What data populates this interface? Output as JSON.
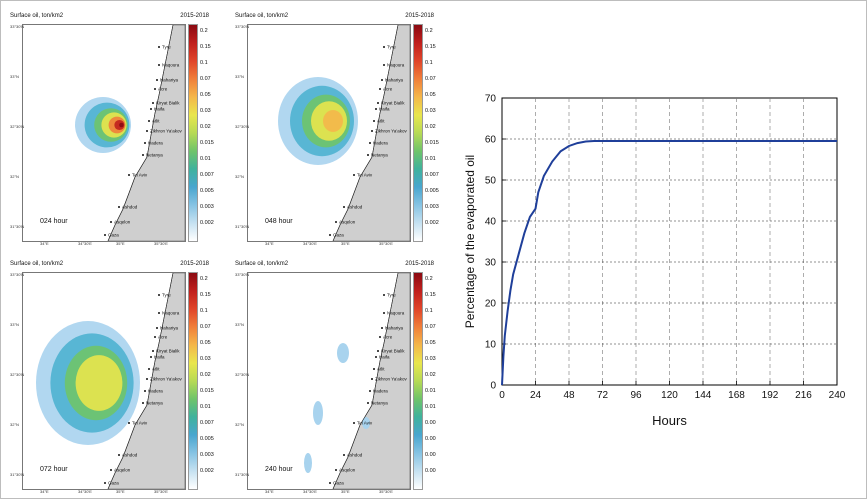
{
  "panels": [
    {
      "id": "p1",
      "title": "Surface oil, ton/km2",
      "years": "2015-2018",
      "hour_label": "024 hour"
    },
    {
      "id": "p2",
      "title": "Surface oil, ton/km2",
      "years": "2015-2018",
      "hour_label": "048 hour"
    },
    {
      "id": "p3",
      "title": "Surface oil, ton/km2",
      "years": "2015-2018",
      "hour_label": "072 hour"
    },
    {
      "id": "p4",
      "title": "Surface oil, ton/km2",
      "years": "2015-2018",
      "hour_label": "240 hour"
    }
  ],
  "colorbar": {
    "ticks": [
      "0.2",
      "0.15",
      "0.1",
      "0.07",
      "0.05",
      "0.03",
      "0.02",
      "0.015",
      "0.01",
      "0.007",
      "0.005",
      "0.003",
      "0.002"
    ],
    "ticks_truncated": [
      "0.2",
      "0.15",
      "0.1",
      "0.07",
      "0.05",
      "0.03",
      "0.02",
      "0.01",
      "0.01",
      "0.00",
      "0.00",
      "0.00",
      "0.00"
    ],
    "colors": [
      "#8b0a12",
      "#c0201d",
      "#e0452a",
      "#f07f3a",
      "#f4b74a",
      "#e9e64d",
      "#b7da55",
      "#6fc46a",
      "#3fb29d",
      "#49a6cf",
      "#86c3e3",
      "#c5e1f1",
      "#ffffff"
    ]
  },
  "map_labels": {
    "lat": [
      "33°30'N",
      "33°N",
      "32°30'N",
      "32°N",
      "31°30'N"
    ],
    "lon": [
      "34°E",
      "34°30'E",
      "35°E",
      "35°30'E"
    ],
    "cities": [
      "Tyre",
      "Naqoura",
      "Nahariya",
      "Acre",
      "Kiryat Bialik",
      "Haifa",
      "Atlit",
      "Zikhron Ya'akov",
      "Hadera",
      "Netanya",
      "Tel Aviv",
      "Ashdod",
      "Asqelon",
      "Gaza"
    ]
  },
  "chart_data": {
    "type": "line",
    "xlabel": "Hours",
    "ylabel": "Percentage of the evaporated oil",
    "xlim": [
      0,
      240
    ],
    "ylim": [
      0,
      70
    ],
    "xticks": [
      0,
      24,
      48,
      72,
      96,
      120,
      144,
      168,
      192,
      216,
      240
    ],
    "yticks": [
      0,
      10,
      20,
      30,
      40,
      50,
      60,
      70
    ],
    "grid": true,
    "series": [
      {
        "color": "#1f3f9a",
        "x": [
          0,
          1,
          2,
          4,
          6,
          8,
          12,
          16,
          20,
          24,
          26,
          30,
          36,
          42,
          48,
          54,
          60,
          66,
          72,
          96,
          120,
          144,
          168,
          192,
          216,
          240
        ],
        "y": [
          0,
          7,
          12,
          18,
          23,
          27,
          32,
          37,
          41,
          43,
          47,
          51,
          54.5,
          57,
          58.3,
          59,
          59.4,
          59.5,
          59.5,
          59.5,
          59.5,
          59.5,
          59.5,
          59.5,
          59.5,
          59.5
        ]
      }
    ]
  }
}
